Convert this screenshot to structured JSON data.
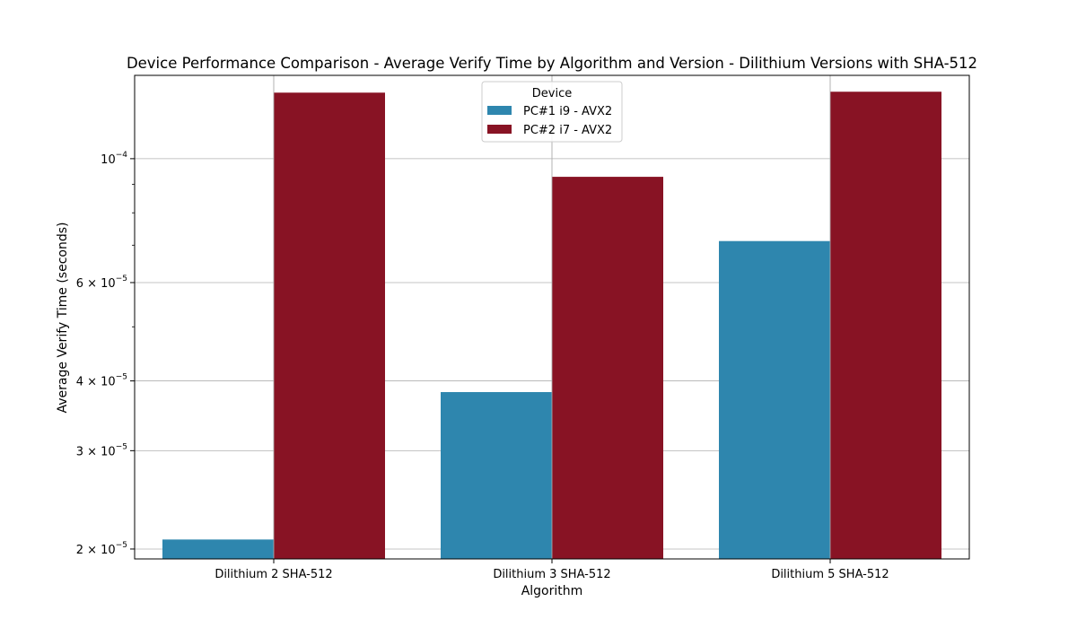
{
  "chart_data": {
    "type": "bar",
    "title": "Device Performance Comparison - Average Verify Time by Algorithm and Version - Dilithium Versions with SHA-512",
    "xlabel": "Algorithm",
    "ylabel": "Average Verify Time (seconds)",
    "categories": [
      "Dilithium 2 SHA-512",
      "Dilithium 3 SHA-512",
      "Dilithium 5 SHA-512"
    ],
    "series": [
      {
        "name": "PC#1 i9 - AVX2",
        "color": "#2e86ae",
        "values": [
          2.08e-05,
          3.82e-05,
          7.12e-05
        ]
      },
      {
        "name": "PC#2 i7 - AVX2",
        "color": "#881324",
        "values": [
          0.0001313,
          9.28e-05,
          0.0001318
        ]
      }
    ],
    "y_scale": "log",
    "ylim": [
      1.92e-05,
      0.000141
    ],
    "y_major_ticks": [
      {
        "value": 2e-05,
        "mantissa": "2",
        "exp": "−5"
      },
      {
        "value": 3e-05,
        "mantissa": "3",
        "exp": "−5"
      },
      {
        "value": 4e-05,
        "mantissa": "4",
        "exp": "−5"
      },
      {
        "value": 6e-05,
        "mantissa": "6",
        "exp": "−5"
      },
      {
        "value": 0.0001,
        "mantissa": "",
        "exp": "−4"
      }
    ],
    "y_minor_ticks": [
      5e-05,
      7e-05,
      8e-05,
      9e-05
    ],
    "grid": true,
    "legend": {
      "title": "Device",
      "placement": "upper-center"
    }
  }
}
